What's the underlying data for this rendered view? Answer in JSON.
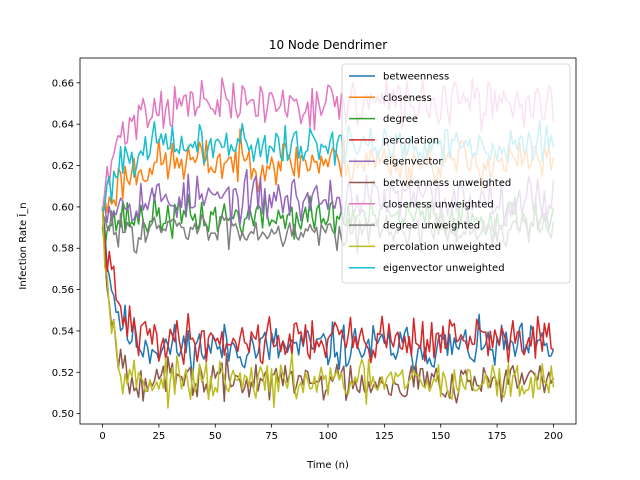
{
  "chart_data": {
    "type": "line",
    "title": "10 Node Dendrimer",
    "xlabel": "Time (n)",
    "ylabel": "Infection Rate Ī_n",
    "xlim": [
      -10,
      210
    ],
    "ylim": [
      0.495,
      0.672
    ],
    "xticks": [
      0,
      25,
      50,
      75,
      100,
      125,
      150,
      175,
      200
    ],
    "yticks": [
      0.5,
      0.52,
      0.54,
      0.56,
      0.58,
      0.6,
      0.62,
      0.64,
      0.66
    ],
    "ytick_labels": [
      "0.50",
      "0.52",
      "0.54",
      "0.56",
      "0.58",
      "0.60",
      "0.62",
      "0.64",
      "0.66"
    ],
    "legend_position": "upper-right",
    "x": "0..200 step 1",
    "series": [
      {
        "name": "betweenness",
        "color": "#1f77b4",
        "start": 0.6,
        "plateau": 0.532,
        "tau": 5,
        "noise": 0.008,
        "seed": 11
      },
      {
        "name": "closeness",
        "color": "#ff7f0e",
        "start": 0.595,
        "plateau": 0.622,
        "tau": 8,
        "noise": 0.008,
        "seed": 23
      },
      {
        "name": "degree",
        "color": "#2ca02c",
        "start": 0.59,
        "plateau": 0.595,
        "tau": 5,
        "noise": 0.007,
        "seed": 37
      },
      {
        "name": "percolation",
        "color": "#d62728",
        "start": 0.6,
        "plateau": 0.536,
        "tau": 5,
        "noise": 0.008,
        "seed": 41
      },
      {
        "name": "eigenvector",
        "color": "#9467bd",
        "start": 0.598,
        "plateau": 0.604,
        "tau": 6,
        "noise": 0.008,
        "seed": 53
      },
      {
        "name": "betweenness unweighted",
        "color": "#8c564b",
        "start": 0.6,
        "plateau": 0.516,
        "tau": 4,
        "noise": 0.007,
        "seed": 67
      },
      {
        "name": "closeness unweighted",
        "color": "#e377c2",
        "start": 0.598,
        "plateau": 0.65,
        "tau": 7,
        "noise": 0.008,
        "seed": 71
      },
      {
        "name": "degree unweighted",
        "color": "#7f7f7f",
        "start": 0.59,
        "plateau": 0.589,
        "tau": 4,
        "noise": 0.006,
        "seed": 83
      },
      {
        "name": "percolation unweighted",
        "color": "#bcbd22",
        "start": 0.6,
        "plateau": 0.515,
        "tau": 4,
        "noise": 0.007,
        "seed": 97
      },
      {
        "name": "eigenvector unweighted",
        "color": "#17becf",
        "start": 0.598,
        "plateau": 0.63,
        "tau": 6,
        "noise": 0.007,
        "seed": 101
      }
    ]
  }
}
